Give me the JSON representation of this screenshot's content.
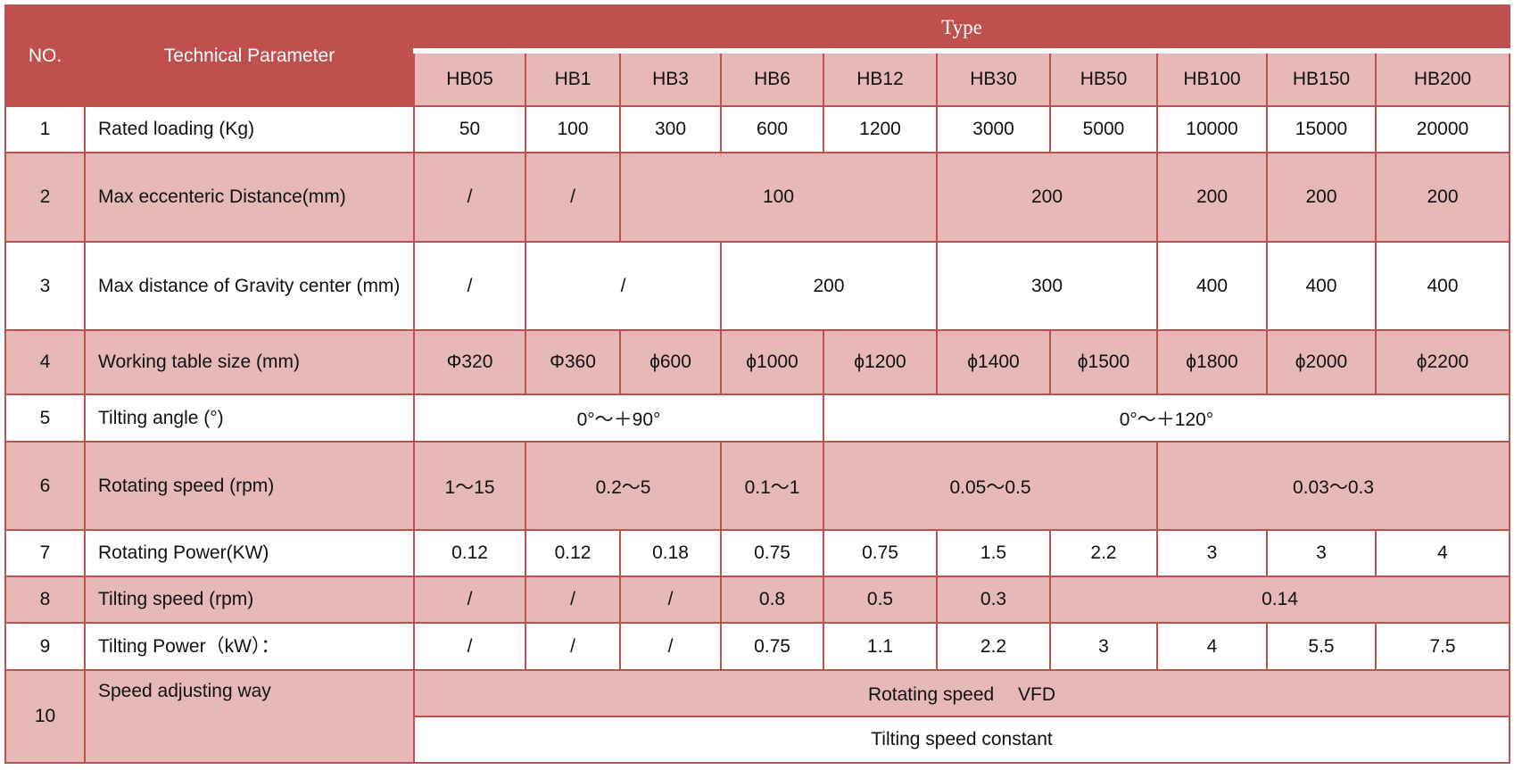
{
  "colors": {
    "header": "#c0504d",
    "pink": "#e6b8b7",
    "white": "#ffffff"
  },
  "header": {
    "no": "NO.",
    "param": "Technical Parameter",
    "type": "Type"
  },
  "models": [
    "HB05",
    "HB1",
    "HB3",
    "HB6",
    "HB12",
    "HB30",
    "HB50",
    "HB100",
    "HB150",
    "HB200"
  ],
  "rows": [
    {
      "no": "1",
      "param": "Rated loading (Kg)",
      "cells": [
        {
          "t": "50",
          "s": 1
        },
        {
          "t": "100",
          "s": 1
        },
        {
          "t": "300",
          "s": 1
        },
        {
          "t": "600",
          "s": 1
        },
        {
          "t": "1200",
          "s": 1
        },
        {
          "t": "3000",
          "s": 1
        },
        {
          "t": "5000",
          "s": 1
        },
        {
          "t": "10000",
          "s": 1
        },
        {
          "t": "15000",
          "s": 1
        },
        {
          "t": "20000",
          "s": 1
        }
      ]
    },
    {
      "no": "2",
      "param": "Max eccenteric Distance(mm)",
      "cells": [
        {
          "t": "/",
          "s": 1
        },
        {
          "t": "/",
          "s": 1
        },
        {
          "t": "100",
          "s": 3
        },
        {
          "t": "200",
          "s": 2
        },
        {
          "t": "200",
          "s": 1
        },
        {
          "t": "200",
          "s": 1
        },
        {
          "t": "200",
          "s": 1
        }
      ]
    },
    {
      "no": "3",
      "param": "Max distance of Gravity center (mm)",
      "cells": [
        {
          "t": "/",
          "s": 1
        },
        {
          "t": "/",
          "s": 2
        },
        {
          "t": "200",
          "s": 2
        },
        {
          "t": "300",
          "s": 2
        },
        {
          "t": "400",
          "s": 1
        },
        {
          "t": "400",
          "s": 1
        },
        {
          "t": "400",
          "s": 1
        }
      ]
    },
    {
      "no": "4",
      "param": "Working table size (mm)",
      "cells": [
        {
          "t": "Φ320",
          "s": 1
        },
        {
          "t": "Φ360",
          "s": 1
        },
        {
          "t": "ϕ600",
          "s": 1
        },
        {
          "t": "ϕ1000",
          "s": 1
        },
        {
          "t": "ϕ1200",
          "s": 1
        },
        {
          "t": "ϕ1400",
          "s": 1
        },
        {
          "t": "ϕ1500",
          "s": 1
        },
        {
          "t": "ϕ1800",
          "s": 1
        },
        {
          "t": "ϕ2000",
          "s": 1
        },
        {
          "t": "ϕ2200",
          "s": 1
        }
      ]
    },
    {
      "no": "5",
      "param": "Tilting angle (°)",
      "cells": [
        {
          "t": "0°～＋90°",
          "s": 4
        },
        {
          "t": "0°～＋120°",
          "s": 6
        }
      ]
    },
    {
      "no": "6",
      "param": "Rotating speed (rpm)",
      "cells": [
        {
          "t": "1～15",
          "s": 1
        },
        {
          "t": "0.2～5",
          "s": 2
        },
        {
          "t": "0.1～1",
          "s": 1
        },
        {
          "t": "0.05～0.5",
          "s": 3
        },
        {
          "t": "0.03～0.3",
          "s": 3
        }
      ]
    },
    {
      "no": "7",
      "param": "Rotating Power(KW)",
      "cells": [
        {
          "t": "0.12",
          "s": 1
        },
        {
          "t": "0.12",
          "s": 1
        },
        {
          "t": "0.18",
          "s": 1
        },
        {
          "t": "0.75",
          "s": 1
        },
        {
          "t": "0.75",
          "s": 1
        },
        {
          "t": "1.5",
          "s": 1
        },
        {
          "t": "2.2",
          "s": 1
        },
        {
          "t": "3",
          "s": 1
        },
        {
          "t": "3",
          "s": 1
        },
        {
          "t": "4",
          "s": 1
        }
      ]
    },
    {
      "no": "8",
      "param": "Tilting speed (rpm)",
      "cells": [
        {
          "t": "/",
          "s": 1
        },
        {
          "t": "/",
          "s": 1
        },
        {
          "t": "/",
          "s": 1
        },
        {
          "t": "0.8",
          "s": 1
        },
        {
          "t": "0.5",
          "s": 1
        },
        {
          "t": "0.3",
          "s": 1
        },
        {
          "t": "0.14",
          "s": 4
        }
      ]
    },
    {
      "no": "9",
      "param": "Tilting Power（kW）：",
      "cells": [
        {
          "t": "/",
          "s": 1
        },
        {
          "t": "/",
          "s": 1
        },
        {
          "t": "/",
          "s": 1
        },
        {
          "t": "0.75",
          "s": 1
        },
        {
          "t": "1.1",
          "s": 1
        },
        {
          "t": "2.2",
          "s": 1
        },
        {
          "t": "3",
          "s": 1
        },
        {
          "t": "4",
          "s": 1
        },
        {
          "t": "5.5",
          "s": 1
        },
        {
          "t": "7.5",
          "s": 1
        }
      ]
    }
  ],
  "row10": {
    "no": "10",
    "param": "Speed adjusting way",
    "line1": "Rotating speed　 VFD",
    "line2": "Tilting speed constant"
  }
}
